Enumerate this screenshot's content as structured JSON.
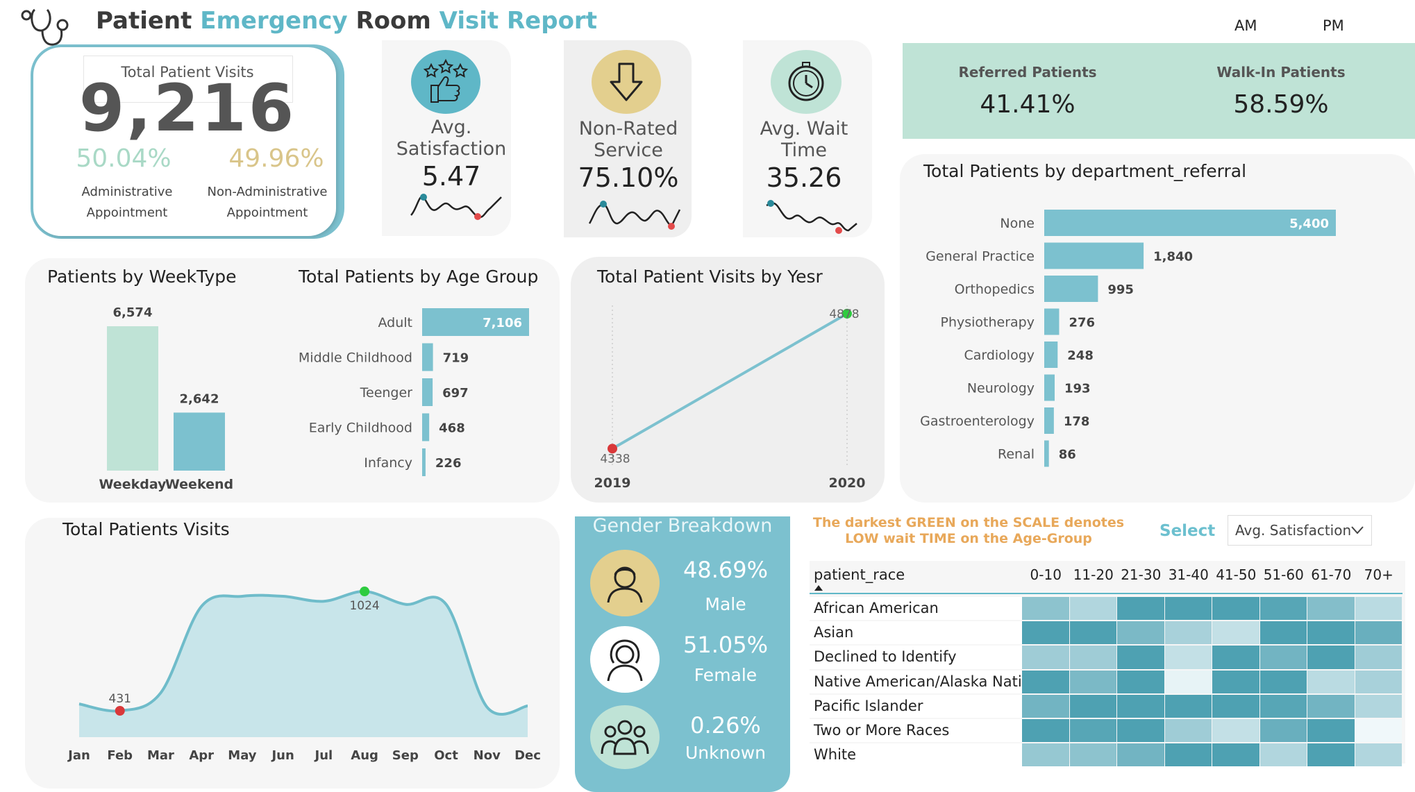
{
  "header": {
    "title_parts": [
      {
        "text": "Patient",
        "color": "#3a3a3a"
      },
      {
        "text": "Emergency",
        "color": "#5fb7c7"
      },
      {
        "text": "Room",
        "color": "#3a3a3a"
      },
      {
        "text": "Visit Report",
        "color": "#5fb7c7"
      }
    ],
    "am_label": "AM",
    "pm_label": "PM"
  },
  "total_visits": {
    "label": "Total Patient Visits",
    "value": "9,216",
    "admin_pct": "50.04%",
    "admin_label_1": "Administrative",
    "admin_label_2": "Appointment",
    "nonadmin_pct": "49.96%",
    "nonadmin_label_1": "Non-Administrative",
    "nonadmin_label_2": "Appointment"
  },
  "kpis": [
    {
      "label_1": "Avg.",
      "label_2": "Satisfaction",
      "value": "5.47",
      "icon": "thumbs-up-stars-icon"
    },
    {
      "label_1": "Non-Rated",
      "label_2": "Service",
      "value": "75.10%",
      "icon": "arrow-down-icon"
    },
    {
      "label_1": "Avg. Wait",
      "label_2": "Time",
      "value": "35.26",
      "icon": "stopwatch-icon"
    }
  ],
  "referral": {
    "referred_label": "Referred Patients",
    "referred_value": "41.41%",
    "walkin_label": "Walk-In Patients",
    "walkin_value": "58.59%"
  },
  "week_type": {
    "title": "Patients by WeekType",
    "categories": [
      "Weekday",
      "Weekend"
    ],
    "values": [
      6574,
      2642
    ],
    "value_labels": [
      "6,574",
      "2,642"
    ],
    "colors": [
      "#bfe3d6",
      "#7cc1cf"
    ]
  },
  "age_group": {
    "title": "Total Patients by Age Group",
    "categories": [
      "Adult",
      "Middle Childhood",
      "Teenger",
      "Early Childhood",
      "Infancy"
    ],
    "values": [
      7106,
      719,
      697,
      468,
      226
    ],
    "value_labels": [
      "7,106",
      "719",
      "697",
      "468",
      "226"
    ]
  },
  "year_line": {
    "title": "Total Patient Visits by Yesr",
    "x": [
      "2019",
      "2020"
    ],
    "values": [
      4338,
      4878
    ],
    "value_labels": [
      "4338",
      "4878"
    ]
  },
  "department": {
    "title": "Total Patients by department_referral",
    "categories": [
      "None",
      "General Practice",
      "Orthopedics",
      "Physiotherapy",
      "Cardiology",
      "Neurology",
      "Gastroenterology",
      "Renal"
    ],
    "values": [
      5400,
      1840,
      995,
      276,
      248,
      193,
      178,
      86
    ],
    "value_labels": [
      "5,400",
      "1,840",
      "995",
      "276",
      "248",
      "193",
      "178",
      "86"
    ]
  },
  "monthly": {
    "title": "Total Patients Visits",
    "months": [
      "Jan",
      "Feb",
      "Mar",
      "Apr",
      "May",
      "Jun",
      "Jul",
      "Aug",
      "Sep",
      "Oct",
      "Nov",
      "Dec"
    ],
    "values": [
      465,
      431,
      520,
      950,
      1000,
      1000,
      975,
      1024,
      960,
      960,
      450,
      455
    ],
    "min_label": "431",
    "max_label": "1024"
  },
  "gender": {
    "title": "Gender Breakdown",
    "items": [
      {
        "pct": "48.69%",
        "label": "Male",
        "icon": "male-avatar-icon"
      },
      {
        "pct": "51.05%",
        "label": "Female",
        "icon": "female-avatar-icon"
      },
      {
        "pct": "0.26%",
        "label": "Unknown",
        "icon": "group-icon"
      }
    ]
  },
  "heatmap": {
    "note_line_1": "The darkest GREEN on the SCALE denotes",
    "note_line_2": "LOW wait TIME on the Age-Group",
    "select_label": "Select",
    "dropdown_value": "Avg. Satisfaction",
    "row_header": "patient_race",
    "columns": [
      "0-10",
      "11-20",
      "21-30",
      "31-40",
      "41-50",
      "51-60",
      "61-70",
      "70+"
    ],
    "rows": [
      "African American",
      "Asian",
      "Declined to Identify",
      "Native American/Alaska Native",
      "Pacific Islander",
      "Two or More Races",
      "White"
    ],
    "levels": [
      [
        0.55,
        0.35,
        0.9,
        0.9,
        0.9,
        0.85,
        0.6,
        0.3
      ],
      [
        0.9,
        0.9,
        0.65,
        0.4,
        0.25,
        0.9,
        0.9,
        0.75
      ],
      [
        0.45,
        0.45,
        0.9,
        0.25,
        0.9,
        0.7,
        0.9,
        0.45
      ],
      [
        0.9,
        0.65,
        0.9,
        0.05,
        0.9,
        0.9,
        0.3,
        0.4
      ],
      [
        0.7,
        0.9,
        0.9,
        0.9,
        0.9,
        0.85,
        0.7,
        0.35
      ],
      [
        0.9,
        0.85,
        0.9,
        0.45,
        0.25,
        0.75,
        0.9,
        0.0
      ],
      [
        0.5,
        0.55,
        0.7,
        0.9,
        0.9,
        0.35,
        0.9,
        0.35
      ]
    ]
  },
  "chart_data": [
    {
      "type": "bar",
      "title": "Patients by WeekType",
      "categories": [
        "Weekday",
        "Weekend"
      ],
      "values": [
        6574,
        2642
      ]
    },
    {
      "type": "bar",
      "orientation": "horizontal",
      "title": "Total Patients by Age Group",
      "categories": [
        "Adult",
        "Middle Childhood",
        "Teenger",
        "Early Childhood",
        "Infancy"
      ],
      "values": [
        7106,
        719,
        697,
        468,
        226
      ]
    },
    {
      "type": "line",
      "title": "Total Patient Visits by Yesr",
      "x": [
        "2019",
        "2020"
      ],
      "values": [
        4338,
        4878
      ]
    },
    {
      "type": "bar",
      "orientation": "horizontal",
      "title": "Total Patients by department_referral",
      "categories": [
        "None",
        "General Practice",
        "Orthopedics",
        "Physiotherapy",
        "Cardiology",
        "Neurology",
        "Gastroenterology",
        "Renal"
      ],
      "values": [
        5400,
        1840,
        995,
        276,
        248,
        193,
        178,
        86
      ]
    },
    {
      "type": "area",
      "title": "Total Patients Visits",
      "x": [
        "Jan",
        "Feb",
        "Mar",
        "Apr",
        "May",
        "Jun",
        "Jul",
        "Aug",
        "Sep",
        "Oct",
        "Nov",
        "Dec"
      ],
      "values": [
        465,
        431,
        520,
        950,
        1000,
        1000,
        975,
        1024,
        960,
        960,
        450,
        455
      ]
    },
    {
      "type": "heatmap",
      "x": [
        "0-10",
        "11-20",
        "21-30",
        "31-40",
        "41-50",
        "51-60",
        "61-70",
        "70+"
      ],
      "y": [
        "African American",
        "Asian",
        "Declined to Identify",
        "Native American/Alaska Native",
        "Pacific Islander",
        "Two or More Races",
        "White"
      ]
    }
  ]
}
